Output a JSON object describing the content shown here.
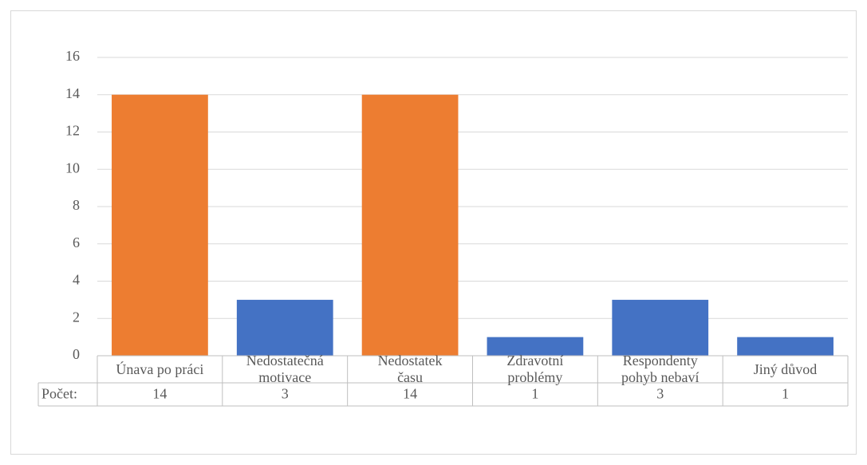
{
  "chart_data": {
    "type": "bar",
    "categories": [
      "Únava po práci",
      "Nedostatečná motivace",
      "Nedostatek času",
      "Zdravotní problémy",
      "Respondenty pohyb nebaví",
      "Jiný důvod"
    ],
    "series": [
      {
        "name": "Počet:",
        "values": [
          14,
          3,
          14,
          1,
          3,
          1
        ],
        "colors": [
          "#ed7d31",
          "#4472c4",
          "#ed7d31",
          "#4472c4",
          "#4472c4",
          "#4472c4"
        ]
      }
    ],
    "ylim": [
      0,
      16
    ],
    "yticks": [
      0,
      2,
      4,
      6,
      8,
      10,
      12,
      14,
      16
    ],
    "grid": true,
    "data_table": true
  }
}
